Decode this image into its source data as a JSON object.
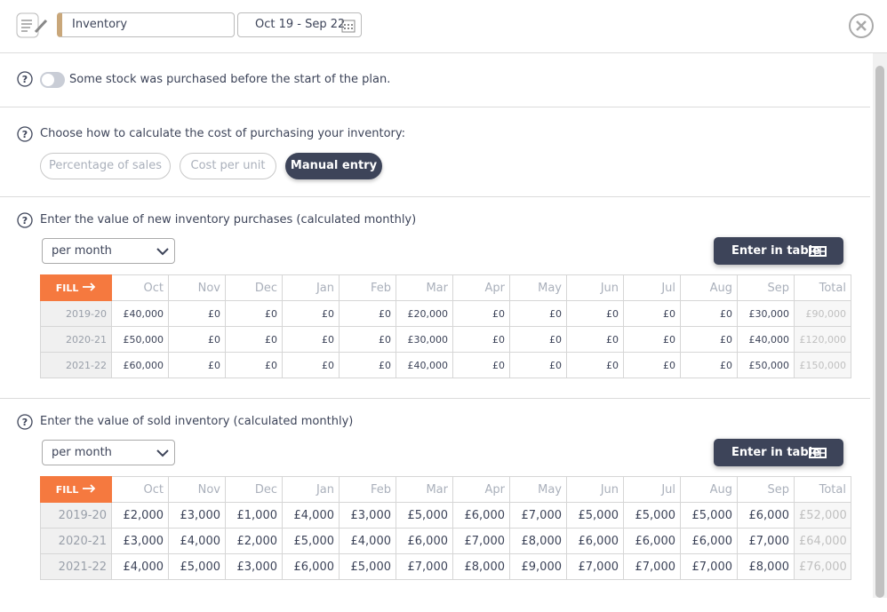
{
  "header": {
    "title": "Inventory",
    "date_range": "Oct 19 - Sep 22"
  },
  "stock_toggle": {
    "label": "Some stock was purchased before the start of the plan."
  },
  "cost_method": {
    "question": "Choose how to calculate the cost of purchasing your inventory:",
    "options": [
      "Percentage of sales",
      "Cost per unit",
      "Manual entry"
    ]
  },
  "sections": [
    {
      "question": "Enter the value of new inventory purchases (calculated monthly)",
      "period": "per month",
      "button": "Enter in table",
      "table": {
        "fill": "FILL",
        "columns": [
          "Oct",
          "Nov",
          "Dec",
          "Jan",
          "Feb",
          "Mar",
          "Apr",
          "May",
          "Jun",
          "Jul",
          "Aug",
          "Sep",
          "Total"
        ],
        "rows": [
          {
            "label": "2019-20",
            "cells": [
              "£40,000",
              "£0",
              "£0",
              "£0",
              "£0",
              "£20,000",
              "£0",
              "£0",
              "£0",
              "£0",
              "£0",
              "£30,000",
              "£90,000"
            ]
          },
          {
            "label": "2020-21",
            "cells": [
              "£50,000",
              "£0",
              "£0",
              "£0",
              "£0",
              "£30,000",
              "£0",
              "£0",
              "£0",
              "£0",
              "£0",
              "£40,000",
              "£120,000"
            ]
          },
          {
            "label": "2021-22",
            "cells": [
              "£60,000",
              "£0",
              "£0",
              "£0",
              "£0",
              "£40,000",
              "£0",
              "£0",
              "£0",
              "£0",
              "£0",
              "£50,000",
              "£150,000"
            ]
          }
        ]
      }
    },
    {
      "question": "Enter the value of sold inventory (calculated monthly)",
      "period": "per month",
      "button": "Enter in table",
      "table": {
        "fill": "FILL",
        "columns": [
          "Oct",
          "Nov",
          "Dec",
          "Jan",
          "Feb",
          "Mar",
          "Apr",
          "May",
          "Jun",
          "Jul",
          "Aug",
          "Sep",
          "Total"
        ],
        "rows": [
          {
            "label": "2019-20",
            "cells": [
              "£2,000",
              "£3,000",
              "£1,000",
              "£4,000",
              "£3,000",
              "£5,000",
              "£6,000",
              "£7,000",
              "£5,000",
              "£5,000",
              "£5,000",
              "£6,000",
              "£52,000"
            ]
          },
          {
            "label": "2020-21",
            "cells": [
              "£3,000",
              "£4,000",
              "£2,000",
              "£5,000",
              "£4,000",
              "£6,000",
              "£7,000",
              "£8,000",
              "£6,000",
              "£6,000",
              "£6,000",
              "£7,000",
              "£64,000"
            ]
          },
          {
            "label": "2021-22",
            "cells": [
              "£4,000",
              "£5,000",
              "£3,000",
              "£6,000",
              "£5,000",
              "£7,000",
              "£8,000",
              "£9,000",
              "£7,000",
              "£7,000",
              "£7,000",
              "£8,000",
              "£76,000"
            ]
          }
        ]
      }
    }
  ]
}
